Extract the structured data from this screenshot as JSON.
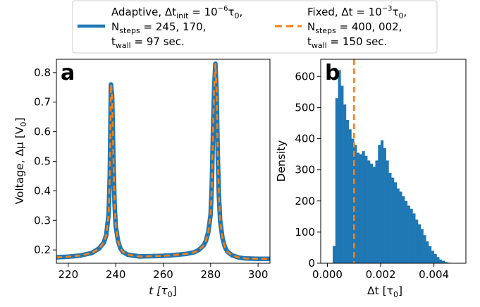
{
  "colors": {
    "adaptive": "#1f77b4",
    "fixed": "#ff7f0e",
    "axes": "#000000",
    "legend_border": "#cccccc"
  },
  "legend": {
    "placement": "top-center",
    "adaptive": {
      "l1_pre": "Adaptive, Δt",
      "l1_sub": "init",
      "l1_mid": " = 10",
      "l1_sup": "−6",
      "l1_post": "τ",
      "l1_sub2": "0",
      "l1_end": ",",
      "l2_pre": "N",
      "l2_sub": "steps",
      "l2_post": " = 245, 170,",
      "l3_pre": "t",
      "l3_sub": "wall",
      "l3_post": " = 97 sec."
    },
    "fixed": {
      "l1_pre": "Fixed, Δt = 10",
      "l1_sup": "−3",
      "l1_post": "τ",
      "l1_sub": "0",
      "l1_end": ",",
      "l2_pre": "N",
      "l2_sub": "steps",
      "l2_post": " = 400, 002,",
      "l3_pre": "t",
      "l3_sub": "wall",
      "l3_post": " = 150 sec."
    }
  },
  "chart_data": [
    {
      "panel": "a",
      "type": "line",
      "xlabel": {
        "pre": "t [τ",
        "sub": "0",
        "post": "]"
      },
      "ylabel": {
        "pre": "Voltage, Δμ [V",
        "sub": "0",
        "post": "]"
      },
      "xlim": [
        215,
        305
      ],
      "ylim": [
        0.155,
        0.845
      ],
      "xticks": [
        220,
        240,
        260,
        280,
        300
      ],
      "yticks": [
        0.2,
        0.3,
        0.4,
        0.5,
        0.6,
        0.7,
        0.8
      ],
      "xtick_labels": [
        "220",
        "240",
        "260",
        "280",
        "300"
      ],
      "ytick_labels": [
        "0.2",
        "0.3",
        "0.4",
        "0.5",
        "0.6",
        "0.7",
        "0.8"
      ],
      "series": [
        {
          "name": "Adaptive",
          "style": "solid-thick",
          "x": [
            215,
            220,
            225,
            230,
            233,
            235,
            236,
            237,
            237.5,
            238,
            238.5,
            239,
            239.5,
            240,
            241,
            242,
            243,
            245,
            250,
            255,
            260,
            265,
            270,
            273,
            275,
            277,
            278,
            279,
            280,
            280.5,
            281,
            281.5,
            282,
            282.5,
            283,
            283.5,
            284,
            285,
            286,
            287,
            289,
            292,
            295,
            300,
            305
          ],
          "y": [
            0.175,
            0.177,
            0.181,
            0.19,
            0.205,
            0.225,
            0.25,
            0.32,
            0.45,
            0.76,
            0.72,
            0.52,
            0.36,
            0.28,
            0.23,
            0.205,
            0.193,
            0.184,
            0.178,
            0.179,
            0.18,
            0.183,
            0.187,
            0.192,
            0.2,
            0.215,
            0.23,
            0.26,
            0.32,
            0.42,
            0.6,
            0.75,
            0.83,
            0.74,
            0.52,
            0.38,
            0.3,
            0.24,
            0.21,
            0.195,
            0.182,
            0.174,
            0.171,
            0.17,
            0.17
          ]
        },
        {
          "name": "Fixed",
          "style": "dashed",
          "x": [
            215,
            220,
            225,
            230,
            233,
            235,
            236,
            237,
            237.5,
            238,
            238.5,
            239,
            239.5,
            240,
            241,
            242,
            243,
            245,
            250,
            255,
            260,
            265,
            270,
            273,
            275,
            277,
            278,
            279,
            280,
            280.5,
            281,
            281.5,
            282,
            282.5,
            283,
            283.5,
            284,
            285,
            286,
            287,
            289,
            292,
            295,
            300,
            305
          ],
          "y": [
            0.175,
            0.177,
            0.181,
            0.19,
            0.205,
            0.225,
            0.25,
            0.32,
            0.45,
            0.76,
            0.72,
            0.52,
            0.36,
            0.28,
            0.23,
            0.205,
            0.193,
            0.184,
            0.178,
            0.179,
            0.18,
            0.183,
            0.187,
            0.192,
            0.2,
            0.215,
            0.23,
            0.26,
            0.32,
            0.42,
            0.6,
            0.75,
            0.83,
            0.74,
            0.52,
            0.38,
            0.3,
            0.24,
            0.21,
            0.195,
            0.182,
            0.174,
            0.171,
            0.17,
            0.17
          ]
        }
      ]
    },
    {
      "panel": "b",
      "type": "bar",
      "subtype": "histogram",
      "xlabel": {
        "pre": "Δt [τ",
        "sub": "0",
        "post": "]"
      },
      "ylabel": {
        "pre": "Density",
        "sub": "",
        "post": ""
      },
      "xlim": [
        -0.00025,
        0.0052
      ],
      "ylim": [
        0,
        655
      ],
      "xticks": [
        0.0,
        0.002,
        0.004
      ],
      "yticks": [
        0,
        100,
        200,
        300,
        400,
        500,
        600
      ],
      "xtick_labels": [
        "0.000",
        "0.002",
        "0.004"
      ],
      "ytick_labels": [
        "0",
        "100",
        "200",
        "300",
        "400",
        "500",
        "600"
      ],
      "bin_start": 0.0002,
      "bin_width": 0.0001,
      "values": [
        55,
        530,
        620,
        570,
        510,
        460,
        430,
        400,
        380,
        355,
        350,
        360,
        345,
        330,
        320,
        310,
        330,
        380,
        395,
        370,
        330,
        290,
        275,
        260,
        240,
        230,
        215,
        200,
        185,
        175,
        160,
        140,
        125,
        110,
        90,
        70,
        55,
        40,
        30,
        20,
        12,
        8,
        4,
        2,
        1
      ],
      "vline": {
        "name": "Fixed",
        "x": 0.001,
        "style": "dashed"
      }
    }
  ],
  "panel_labels": [
    "a",
    "b"
  ]
}
